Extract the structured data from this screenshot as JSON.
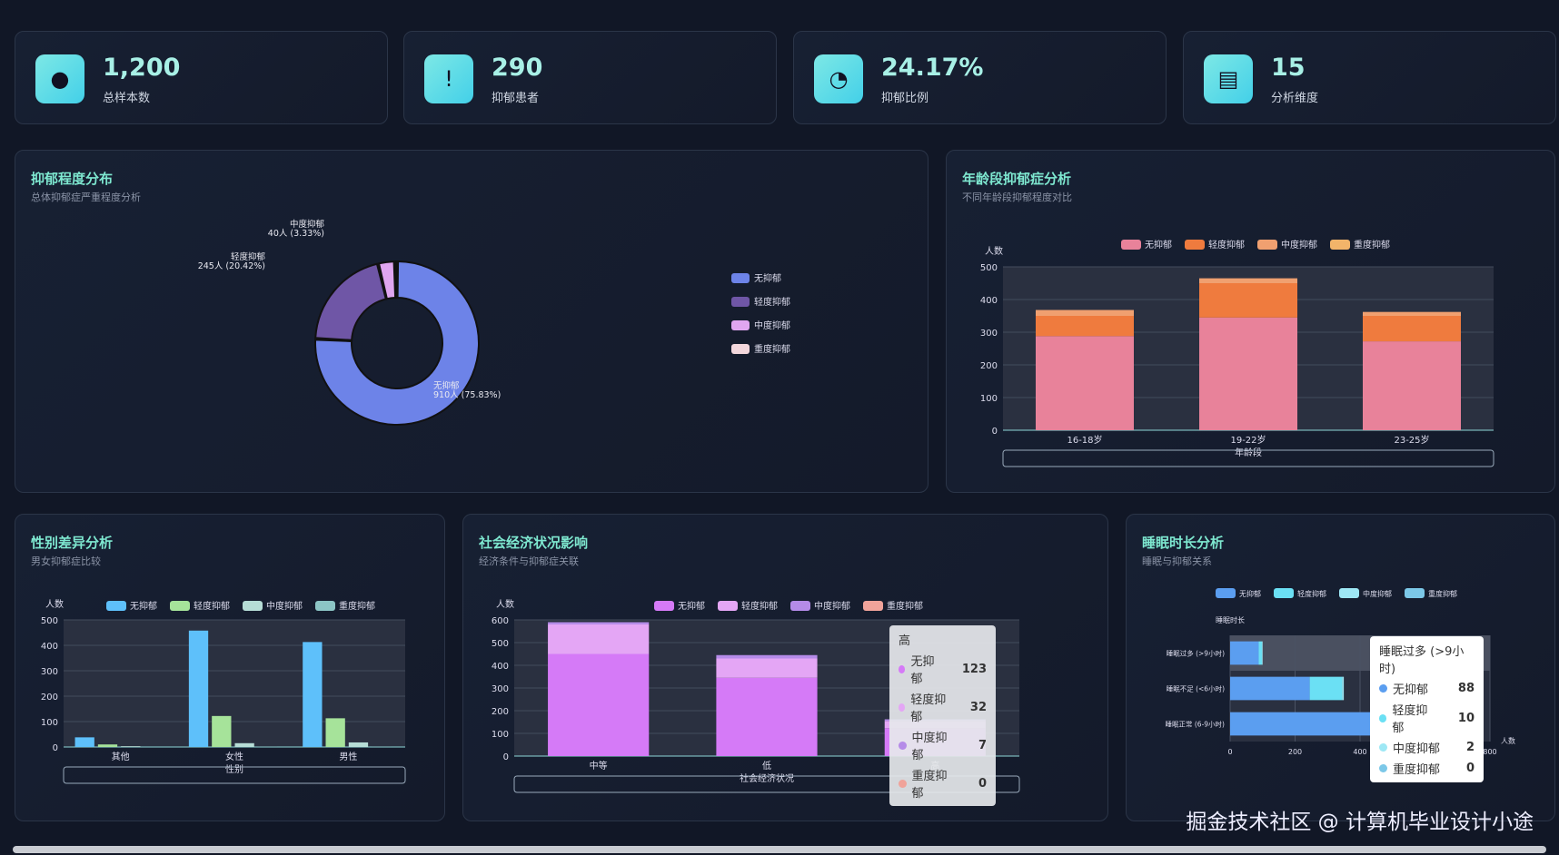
{
  "stats": [
    {
      "value": "1,200",
      "label": "总样本数",
      "icon": "user-icon"
    },
    {
      "value": "290",
      "label": "抑郁患者",
      "icon": "alert-icon"
    },
    {
      "value": "24.17%",
      "label": "抑郁比例",
      "icon": "pie-icon"
    },
    {
      "value": "15",
      "label": "分析维度",
      "icon": "presentation-icon"
    }
  ],
  "panels": {
    "severity": {
      "title": "抑郁程度分布",
      "subtitle": "总体抑郁症严重程度分析"
    },
    "age": {
      "title": "年龄段抑郁症分析",
      "subtitle": "不同年龄段抑郁程度对比"
    },
    "gender": {
      "title": "性别差异分析",
      "subtitle": "男女抑郁症比较"
    },
    "ses": {
      "title": "社会经济状况影响",
      "subtitle": "经济条件与抑郁症关联"
    },
    "sleep": {
      "title": "睡眠时长分析",
      "subtitle": "睡眠与抑郁关系"
    }
  },
  "tooltips": {
    "ses": {
      "title": "高",
      "rows": [
        [
          "无抑郁",
          "123"
        ],
        [
          "轻度抑郁",
          "32"
        ],
        [
          "中度抑郁",
          "7"
        ],
        [
          "重度抑郁",
          "0"
        ]
      ]
    },
    "sleep": {
      "title": "睡眠过多 (>9小时)",
      "rows": [
        [
          "无抑郁",
          "88"
        ],
        [
          "轻度抑郁",
          "10"
        ],
        [
          "中度抑郁",
          "2"
        ],
        [
          "重度抑郁",
          "0"
        ]
      ]
    }
  },
  "watermark": "掘金技术社区 @ 计算机毕业设计小途",
  "chart_data": [
    {
      "type": "pie",
      "id": "severity",
      "categories": [
        "无抑郁",
        "轻度抑郁",
        "中度抑郁",
        "重度抑郁"
      ],
      "values": [
        910,
        245,
        40,
        5
      ],
      "labels": [
        "无抑郁\n910人 (75.83%)",
        "轻度抑郁\n245人 (20.42%)",
        "中度抑郁\n40人 (3.33%)",
        ""
      ],
      "colors": [
        "#6d83e8",
        "#6f56a6",
        "#e0a6f0",
        "#f3d7dc"
      ],
      "legend": "right"
    },
    {
      "type": "bar",
      "stacked": true,
      "id": "age",
      "categories": [
        "16-18岁",
        "19-22岁",
        "23-25岁"
      ],
      "xlabel": "年龄段",
      "ylabel": "人数",
      "ylim": [
        0,
        500
      ],
      "series": [
        {
          "name": "无抑郁",
          "values": [
            288,
            345,
            272
          ]
        },
        {
          "name": "轻度抑郁",
          "values": [
            62,
            105,
            78
          ]
        },
        {
          "name": "中度抑郁",
          "values": [
            18,
            15,
            12
          ]
        },
        {
          "name": "重度抑郁",
          "values": [
            0,
            0,
            0
          ]
        }
      ],
      "colors": [
        "#e8829a",
        "#ef7b3e",
        "#f0a070",
        "#f2b46a"
      ]
    },
    {
      "type": "bar",
      "id": "gender",
      "categories": [
        "其他",
        "女性",
        "男性"
      ],
      "xlabel": "性别",
      "ylabel": "人数",
      "ylim": [
        0,
        500
      ],
      "series": [
        {
          "name": "无抑郁",
          "values": [
            38,
            458,
            413
          ]
        },
        {
          "name": "轻度抑郁",
          "values": [
            10,
            122,
            113
          ]
        },
        {
          "name": "中度抑郁",
          "values": [
            3,
            15,
            18
          ]
        },
        {
          "name": "重度抑郁",
          "values": [
            0,
            1,
            1
          ]
        }
      ],
      "colors": [
        "#5ec0fa",
        "#a6e39a",
        "#b6ddd6",
        "#8cc5c5"
      ]
    },
    {
      "type": "bar",
      "stacked": true,
      "id": "ses",
      "categories": [
        "中等",
        "低",
        "高"
      ],
      "xlabel": "社会经济状况",
      "ylabel": "人数",
      "ylim": [
        0,
        600
      ],
      "series": [
        {
          "name": "无抑郁",
          "values": [
            450,
            345,
            123
          ]
        },
        {
          "name": "轻度抑郁",
          "values": [
            130,
            85,
            32
          ]
        },
        {
          "name": "中度抑郁",
          "values": [
            10,
            15,
            7
          ]
        },
        {
          "name": "重度抑郁",
          "values": [
            0,
            0,
            0
          ]
        }
      ],
      "colors": [
        "#d57af7",
        "#e4a6f5",
        "#b58be8",
        "#f0a39a"
      ]
    },
    {
      "type": "bar",
      "stacked": true,
      "horizontal": true,
      "id": "sleep",
      "categories": [
        "睡眠正常 (6-9小时)",
        "睡眠不足 (<6小时)",
        "睡眠过多 (>9小时)"
      ],
      "xlabel": "人数",
      "ylabel": "睡眠时长",
      "xlim": [
        0,
        800
      ],
      "series": [
        {
          "name": "无抑郁",
          "values": [
            585,
            245,
            88
          ]
        },
        {
          "name": "轻度抑郁",
          "values": [
            148,
            100,
            10
          ]
        },
        {
          "name": "中度抑郁",
          "values": [
            22,
            5,
            2
          ]
        },
        {
          "name": "重度抑郁",
          "values": [
            0,
            0,
            0
          ]
        }
      ],
      "colors": [
        "#5b9ef0",
        "#6be0f4",
        "#9ee8f5",
        "#7cc8e8"
      ]
    }
  ]
}
